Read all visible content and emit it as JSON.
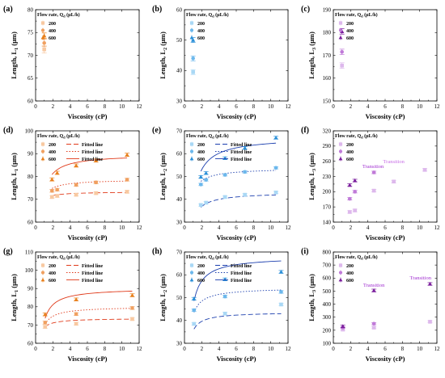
{
  "chart_data": [
    {
      "id": "a",
      "type": "scatter",
      "panel_label": "(a)",
      "xlabel": "Viscosity (cP)",
      "ylabel_main": "Length, L",
      "ylabel_sub": "1",
      "ylabel_unit": " (μm)",
      "xlim": [
        0,
        12
      ],
      "ylim": [
        60,
        80
      ],
      "xticks": [
        0,
        2,
        4,
        6,
        8,
        10,
        12
      ],
      "yticks": [
        60,
        65,
        70,
        75,
        80
      ],
      "legend_title": "Flow rate, Q",
      "legend_title_sub": "d",
      "legend_title_unit": " (μL/h)",
      "series": [
        {
          "name": "200",
          "color": "#f8c9a1",
          "marker": "square",
          "x": [
            1.0
          ],
          "y": [
            71.3
          ],
          "err": [
            0.8
          ]
        },
        {
          "name": "400",
          "color": "#f0a060",
          "marker": "circle",
          "x": [
            1.0
          ],
          "y": [
            72.7
          ],
          "err": [
            0.8
          ]
        },
        {
          "name": "600",
          "color": "#e8801c",
          "marker": "triangle",
          "x": [
            1.0
          ],
          "y": [
            74.3
          ],
          "err": [
            0.6
          ]
        }
      ]
    },
    {
      "id": "b",
      "type": "scatter",
      "panel_label": "(b)",
      "xlabel": "Viscosity (cP)",
      "ylabel_main": "Length, L",
      "ylabel_sub": "2",
      "ylabel_unit": " (μm)",
      "xlim": [
        0,
        12
      ],
      "ylim": [
        30,
        60
      ],
      "xticks": [
        0,
        2,
        4,
        6,
        8,
        10,
        12
      ],
      "yticks": [
        30,
        40,
        50,
        60
      ],
      "legend_title": "Flow rate, Q",
      "legend_title_sub": "d",
      "legend_title_unit": " (μL/h)",
      "series": [
        {
          "name": "200",
          "color": "#a9d8f5",
          "marker": "square",
          "x": [
            1.0
          ],
          "y": [
            39.5
          ],
          "err": [
            0.8
          ]
        },
        {
          "name": "400",
          "color": "#6cb8ec",
          "marker": "circle",
          "x": [
            1.0
          ],
          "y": [
            44.0
          ],
          "err": [
            0.8
          ]
        },
        {
          "name": "600",
          "color": "#2a8fd8",
          "marker": "triangle",
          "x": [
            1.0
          ],
          "y": [
            50.0
          ],
          "err": [
            0.8
          ]
        }
      ]
    },
    {
      "id": "c",
      "type": "scatter",
      "panel_label": "(c)",
      "xlabel": "Viscosity (cP)",
      "ylabel_main": "Length, L",
      "ylabel_sub": "3",
      "ylabel_unit": " (μm)",
      "xlim": [
        0,
        12
      ],
      "ylim": [
        150,
        190
      ],
      "xticks": [
        0,
        2,
        4,
        6,
        8,
        10,
        12
      ],
      "yticks": [
        150,
        160,
        170,
        180,
        190
      ],
      "legend_title": "Flow rate, Q",
      "legend_title_sub": "d",
      "legend_title_unit": " (μL/h)",
      "series": [
        {
          "name": "200",
          "color": "#ddb8ec",
          "marker": "square",
          "x": [
            1.0
          ],
          "y": [
            165.5
          ],
          "err": [
            1.2
          ]
        },
        {
          "name": "400",
          "color": "#c07ad8",
          "marker": "circle",
          "x": [
            1.0
          ],
          "y": [
            171.5
          ],
          "err": [
            1.2
          ]
        },
        {
          "name": "600",
          "color": "#7a1d9c",
          "marker": "triangle",
          "x": [
            1.0
          ],
          "y": [
            180.5
          ],
          "err": [
            1.2
          ]
        }
      ]
    },
    {
      "id": "d",
      "type": "scatter",
      "panel_label": "(d)",
      "xlabel": "Viscosity (cP)",
      "ylabel_main": "Length, L",
      "ylabel_sub": "1",
      "ylabel_unit": " (μm)",
      "xlim": [
        0,
        12
      ],
      "ylim": [
        60,
        100
      ],
      "xticks": [
        0,
        2,
        4,
        6,
        8,
        10,
        12
      ],
      "yticks": [
        60,
        70,
        80,
        90,
        100
      ],
      "legend_title": "Flow rate, Q",
      "legend_title_sub": "d",
      "legend_title_unit": " (μL/h)",
      "fit_label": "Fitted line",
      "series": [
        {
          "name": "200",
          "color": "#f8c9a1",
          "fitcolor": "#e03a1a",
          "marker": "square",
          "dash": "6,3",
          "x": [
            1.9,
            2.5,
            4.7,
            7.0,
            10.6
          ],
          "y": [
            71.0,
            71.5,
            72.0,
            72.7,
            73.3
          ],
          "err": [
            0.6,
            0.6,
            0.6,
            0.6,
            0.6
          ],
          "fit": {
            "a": 70.0,
            "b": 3.3
          }
        },
        {
          "name": "400",
          "color": "#f0a060",
          "fitcolor": "#e03a1a",
          "marker": "circle",
          "dash": "1.5,2",
          "x": [
            1.9,
            2.5,
            4.7,
            7.0,
            10.6
          ],
          "y": [
            73.7,
            74.2,
            76.3,
            77.4,
            78.6
          ],
          "err": [
            0.6,
            0.6,
            0.6,
            0.6,
            0.6
          ],
          "fit": {
            "a": 71.2,
            "b": 7.5
          }
        },
        {
          "name": "600",
          "color": "#e8801c",
          "fitcolor": "#e03a1a",
          "marker": "triangle",
          "dash": "",
          "x": [
            1.9,
            2.5,
            4.7,
            7.0,
            10.6
          ],
          "y": [
            78.7,
            81.6,
            84.8,
            87.0,
            89.5
          ],
          "err": [
            0.7,
            0.7,
            0.7,
            0.7,
            0.7
          ],
          "fit": {
            "a": 72.9,
            "b": 16.8
          }
        }
      ]
    },
    {
      "id": "e",
      "type": "scatter",
      "panel_label": "(e)",
      "xlabel": "Viscosity (cP)",
      "ylabel_main": "Length, L",
      "ylabel_sub": "2",
      "ylabel_unit": " (μm)",
      "xlim": [
        0,
        12
      ],
      "ylim": [
        30,
        70
      ],
      "xticks": [
        0,
        2,
        4,
        6,
        8,
        10,
        12
      ],
      "yticks": [
        30,
        40,
        50,
        60,
        70
      ],
      "legend_title": "Flow rate, Q",
      "legend_title_sub": "d",
      "legend_title_unit": " (μL/h)",
      "fit_label": "Fitted line",
      "series": [
        {
          "name": "200",
          "color": "#a9d8f5",
          "fitcolor": "#1c3fae",
          "marker": "square",
          "dash": "6,3",
          "x": [
            1.9,
            2.5,
            4.7,
            7.0,
            10.6
          ],
          "y": [
            37.5,
            38.5,
            41.0,
            42.0,
            43.0
          ],
          "err": [
            0.5,
            0.5,
            0.5,
            0.5,
            0.5
          ],
          "fit": {
            "a": 30.6,
            "b": 12.5
          }
        },
        {
          "name": "400",
          "color": "#6cb8ec",
          "fitcolor": "#1c3fae",
          "marker": "circle",
          "dash": "1.5,2",
          "x": [
            1.9,
            2.5,
            4.7,
            7.0,
            10.6
          ],
          "y": [
            46.5,
            48.5,
            50.7,
            52.0,
            53.8
          ],
          "err": [
            0.5,
            0.5,
            0.5,
            0.5,
            0.5
          ],
          "fit": {
            "a": 42.6,
            "b": 11.1
          }
        },
        {
          "name": "600",
          "color": "#2a8fd8",
          "fitcolor": "#1c3fae",
          "marker": "triangle",
          "dash": "",
          "x": [
            1.9,
            2.5,
            4.7,
            7.0,
            10.6
          ],
          "y": [
            49.8,
            51.5,
            58.0,
            62.5,
            67.0
          ],
          "err": [
            0.6,
            0.6,
            0.6,
            0.6,
            0.6
          ],
          "fit": {
            "a": 38.8,
            "b": 28.5
          }
        }
      ]
    },
    {
      "id": "f",
      "type": "scatter",
      "panel_label": "(f)",
      "xlabel": "Viscosity (cP)",
      "ylabel_main": "Length, L",
      "ylabel_sub": "3",
      "ylabel_unit": " (μm)",
      "xlim": [
        0,
        12
      ],
      "ylim": [
        140,
        320
      ],
      "xticks": [
        0,
        2,
        4,
        6,
        8,
        10,
        12
      ],
      "yticks": [
        140,
        170,
        200,
        230,
        260,
        290,
        320
      ],
      "legend_title": "Flow rate, Q",
      "legend_title_sub": "d",
      "legend_title_unit": " (μL/h)",
      "series": [
        {
          "name": "200",
          "color": "#ddb8ec",
          "marker": "square",
          "x": [
            1.9,
            2.5,
            4.7,
            7.0,
            10.6
          ],
          "y": [
            160.0,
            163.0,
            202.0,
            220.0,
            243.0
          ],
          "err": [
            2.5,
            2.5,
            2.5,
            2.5,
            2.5
          ]
        },
        {
          "name": "400",
          "color": "#c07ad8",
          "marker": "circle",
          "x": [
            1.9,
            2.5,
            4.7
          ],
          "y": [
            186.0,
            200.0,
            238.0
          ],
          "err": [
            2.5,
            2.5,
            2.5
          ]
        },
        {
          "name": "600",
          "color": "#7a1d9c",
          "marker": "triangle",
          "x": [
            1.9,
            2.5
          ],
          "y": [
            213.0,
            222.0
          ],
          "err": [
            2.5,
            2.5
          ]
        }
      ],
      "annotations": [
        {
          "text": "Transition",
          "x": 4.6,
          "y": 247.0,
          "color": "#a02ed0"
        },
        {
          "text": "Transition",
          "x": 7.0,
          "y": 256.0,
          "color": "#c86ee6"
        }
      ]
    },
    {
      "id": "g",
      "type": "scatter",
      "panel_label": "(g)",
      "xlabel": "Viscosity (cP)",
      "ylabel_main": "Length, L",
      "ylabel_sub": "1",
      "ylabel_unit": " (μm)",
      "xlim": [
        0,
        12
      ],
      "ylim": [
        60,
        110
      ],
      "xticks": [
        0,
        2,
        4,
        6,
        8,
        10,
        12
      ],
      "yticks": [
        60,
        70,
        80,
        90,
        100,
        110
      ],
      "legend_title": "Flow rate, Q",
      "legend_title_sub": "d",
      "legend_title_unit": " (μL/h)",
      "fit_label": "Fitted line",
      "series": [
        {
          "name": "200",
          "color": "#f8c9a1",
          "fitcolor": "#e03a1a",
          "marker": "square",
          "dash": "6,3",
          "x": [
            1.1,
            4.7,
            11.2
          ],
          "y": [
            69.0,
            70.7,
            73.3
          ],
          "err": [
            0.8,
            0.8,
            0.8
          ]
        },
        {
          "name": "400",
          "color": "#f0a060",
          "fitcolor": "#e03a1a",
          "marker": "circle",
          "dash": "1.5,2",
          "x": [
            1.1,
            4.7,
            11.2
          ],
          "y": [
            71.3,
            76.0,
            79.3
          ],
          "err": [
            0.8,
            0.8,
            0.8
          ]
        },
        {
          "name": "600",
          "color": "#e8801c",
          "fitcolor": "#e03a1a",
          "marker": "triangle",
          "dash": "",
          "x": [
            1.1,
            4.7,
            11.2
          ],
          "y": [
            75.8,
            84.0,
            86.3
          ],
          "err": [
            0.8,
            0.8,
            0.8
          ]
        }
      ],
      "fits": [
        {
          "dash": "6,3",
          "a": 68.5,
          "b": 5.2
        },
        {
          "dash": "1.5,2",
          "a": 69.5,
          "b": 10.6
        },
        {
          "dash": "",
          "a": 72.0,
          "b": 18.2
        }
      ]
    },
    {
      "id": "h",
      "type": "scatter",
      "panel_label": "(h)",
      "xlabel": "Viscosity (cP)",
      "ylabel_main": "Length, L",
      "ylabel_sub": "2",
      "ylabel_unit": " (μm)",
      "xlim": [
        0,
        12
      ],
      "ylim": [
        30,
        70
      ],
      "xticks": [
        0,
        2,
        4,
        6,
        8,
        10,
        12
      ],
      "yticks": [
        30,
        40,
        50,
        60,
        70
      ],
      "legend_title": "Flow rate, Q",
      "legend_title_sub": "d",
      "legend_title_unit": " (μL/h)",
      "fit_label": "Fitted line",
      "series": [
        {
          "name": "200",
          "color": "#a9d8f5",
          "fitcolor": "#1c3fae",
          "marker": "square",
          "dash": "6,3",
          "x": [
            1.1,
            4.7,
            11.2
          ],
          "y": [
            38.5,
            43.0,
            47.0
          ],
          "err": [
            0.6,
            0.6,
            0.6
          ]
        },
        {
          "name": "400",
          "color": "#6cb8ec",
          "fitcolor": "#1c3fae",
          "marker": "circle",
          "dash": "1.5,2",
          "x": [
            1.1,
            4.7,
            11.2
          ],
          "y": [
            44.5,
            50.5,
            52.5
          ],
          "err": [
            0.6,
            0.6,
            0.6
          ]
        },
        {
          "name": "600",
          "color": "#2a8fd8",
          "fitcolor": "#1c3fae",
          "marker": "triangle",
          "dash": "",
          "x": [
            1.1,
            4.7,
            11.2
          ],
          "y": [
            49.5,
            58.0,
            61.3
          ],
          "err": [
            0.6,
            0.6,
            0.6
          ]
        }
      ],
      "fits": [
        {
          "dash": "6,3",
          "a": 35.5,
          "b": 8.2
        },
        {
          "dash": "1.5,2",
          "a": 42.5,
          "b": 11.9
        },
        {
          "dash": "",
          "a": 46.6,
          "b": 21.4
        }
      ]
    },
    {
      "id": "i",
      "type": "scatter",
      "panel_label": "(i)",
      "xlabel": "Viscosity (cP)",
      "ylabel_main": "Length, L",
      "ylabel_sub": "3",
      "ylabel_unit": " (μm)",
      "xlim": [
        0,
        12
      ],
      "ylim": [
        100,
        800
      ],
      "xticks": [
        0,
        2,
        4,
        6,
        8,
        10,
        12
      ],
      "yticks": [
        100,
        200,
        300,
        400,
        500,
        600,
        700,
        800
      ],
      "legend_title": "Flow rate, Q",
      "legend_title_sub": "d",
      "legend_title_unit": " (μL/h)",
      "series": [
        {
          "name": "200",
          "color": "#ddb8ec",
          "marker": "square",
          "x": [
            1.1,
            4.7,
            11.2
          ],
          "y": [
            205.0,
            220.0,
            265.0
          ],
          "err": [
            8,
            8,
            8
          ]
        },
        {
          "name": "400",
          "color": "#c07ad8",
          "marker": "circle",
          "x": [
            1.1,
            4.7
          ],
          "y": [
            220.0,
            250.0
          ],
          "err": [
            8,
            8
          ]
        },
        {
          "name": "600",
          "color": "#7a1d9c",
          "marker": "triangle",
          "x": [
            1.1,
            4.7,
            11.2
          ],
          "y": [
            230.0,
            505.0,
            555.0
          ],
          "err": [
            10,
            10,
            10
          ]
        }
      ],
      "annotations": [
        {
          "text": "Transition",
          "x": 4.7,
          "y": 535.0,
          "color": "#a02ed0"
        },
        {
          "text": "Transition",
          "x": 10.1,
          "y": 590.0,
          "color": "#a02ed0"
        }
      ]
    }
  ]
}
